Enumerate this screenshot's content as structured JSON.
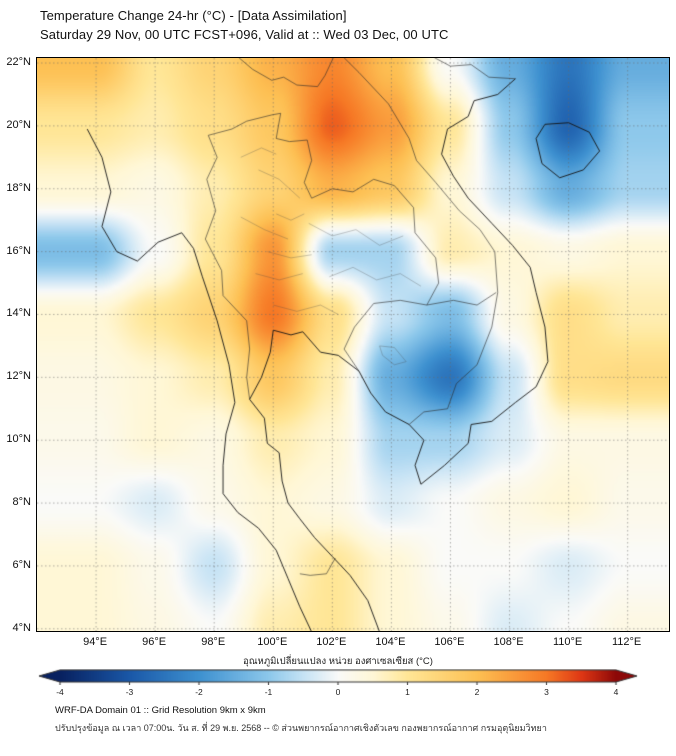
{
  "header": {
    "title": "Temperature Change 24-hr (°C) - [Data Assimilation]",
    "subtitle": "Saturday 29 Nov, 00 UTC FCST+096, Valid at :: Wed 03 Dec, 00 UTC"
  },
  "chart_data": {
    "type": "heatmap",
    "title": "Temperature Change 24-hr (°C) - [Data Assimilation]",
    "subtitle": "Saturday 29 Nov, 00 UTC FCST+096, Valid at :: Wed 03 Dec, 00 UTC",
    "units": "°C",
    "xlabel": "",
    "ylabel": "",
    "grid": true,
    "x_ticks": [
      "94°E",
      "96°E",
      "98°E",
      "100°E",
      "102°E",
      "104°E",
      "106°E",
      "108°E",
      "110°E",
      "112°E"
    ],
    "y_ticks": [
      "22°N",
      "20°N",
      "18°N",
      "16°N",
      "14°N",
      "12°N",
      "10°N",
      "8°N",
      "6°N",
      "4°N"
    ],
    "x": [
      94,
      96,
      98,
      100,
      102,
      104,
      106,
      108,
      110,
      112
    ],
    "y": [
      22,
      20,
      18,
      16,
      14,
      12,
      10,
      8,
      6,
      4
    ],
    "lon_range": [
      92.0,
      113.4
    ],
    "lat_range": [
      3.93,
      22.16
    ],
    "values": [
      [
        2.0,
        1.0,
        1.5,
        2.2,
        2.8,
        2.0,
        0.0,
        -1.5,
        -2.5,
        -1.5
      ],
      [
        1.0,
        0.8,
        1.2,
        1.8,
        3.2,
        2.5,
        1.0,
        -1.0,
        -2.8,
        -1.0
      ],
      [
        0.5,
        0.3,
        0.8,
        1.5,
        2.2,
        1.8,
        0.5,
        -0.5,
        -1.5,
        -0.8
      ],
      [
        -1.2,
        0.0,
        1.0,
        2.6,
        -0.8,
        -0.8,
        0.8,
        0.5,
        0.3,
        0.5
      ],
      [
        0.5,
        1.0,
        1.5,
        3.0,
        1.2,
        -0.5,
        -1.2,
        0.3,
        1.2,
        0.8
      ],
      [
        0.3,
        0.5,
        0.8,
        1.8,
        0.8,
        -1.5,
        -2.5,
        -0.5,
        1.2,
        1.3
      ],
      [
        0.2,
        0.5,
        0.3,
        0.8,
        0.5,
        -0.8,
        -0.8,
        -0.3,
        0.3,
        0.3
      ],
      [
        0.0,
        -0.3,
        0.2,
        0.5,
        0.3,
        -0.3,
        0.0,
        0.3,
        0.5,
        0.2
      ],
      [
        0.5,
        0.2,
        -0.5,
        0.5,
        1.0,
        0.5,
        0.0,
        0.0,
        -0.3,
        0.0
      ],
      [
        0.5,
        0.3,
        0.0,
        0.8,
        1.0,
        0.5,
        0.2,
        -0.3,
        0.0,
        0.3
      ]
    ],
    "colorbar": {
      "label": "อุณหภูมิเปลี่ยนแปลง หน่วย องศาเซลเซียส (°C)",
      "range": [
        -4,
        4
      ],
      "ticks": [
        -4,
        -3,
        -2,
        -1,
        0,
        1,
        2,
        3,
        4
      ],
      "stops": [
        [
          -4.0,
          [
            8,
            33,
            96
          ]
        ],
        [
          -3.0,
          [
            26,
            88,
            168
          ]
        ],
        [
          -2.0,
          [
            62,
            145,
            208
          ]
        ],
        [
          -1.0,
          [
            141,
            200,
            235
          ]
        ],
        [
          -0.5,
          [
            198,
            227,
            245
          ]
        ],
        [
          0.0,
          [
            250,
            250,
            248
          ]
        ],
        [
          0.5,
          [
            255,
            247,
            214
          ]
        ],
        [
          1.0,
          [
            255,
            230,
            150
          ]
        ],
        [
          2.0,
          [
            253,
            192,
            83
          ]
        ],
        [
          3.0,
          [
            246,
            120,
            37
          ]
        ],
        [
          3.5,
          [
            222,
            55,
            20
          ]
        ],
        [
          4.0,
          [
            140,
            8,
            8
          ]
        ]
      ]
    }
  },
  "footer": {
    "line1": "WRF-DA Domain 01 :: Grid Resolution 9km x 9km",
    "line2": "ปรับปรุงข้อมูล ณ เวลา 07:00น. วัน ส. ที่ 29 พ.ย. 2568 -- © ส่วนพยากรณ์อากาศเชิงตัวเลข กองพยากรณ์อากาศ กรมอุตุนิยมวิทยา"
  }
}
